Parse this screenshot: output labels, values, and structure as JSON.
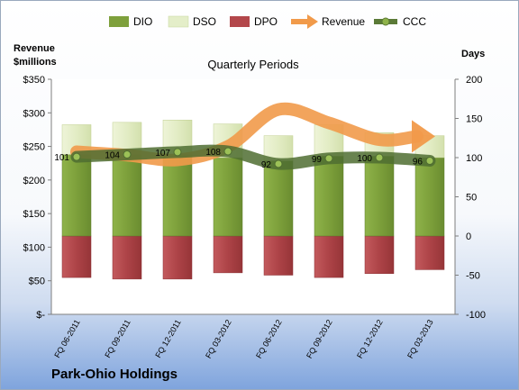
{
  "chart_data": {
    "type": "bar",
    "title": "Quarterly Periods",
    "company": "Park-Ohio Holdings",
    "y_left_label_line1": "Revenue",
    "y_left_label_line2": "$millions",
    "y_right_label": "Days",
    "y_left_ticks": [
      "$-",
      "$50",
      "$100",
      "$150",
      "$200",
      "$250",
      "$300",
      "$350"
    ],
    "y_right_ticks": [
      "-100",
      "-50",
      "0",
      "50",
      "100",
      "150",
      "200"
    ],
    "ylim_left": [
      0,
      350
    ],
    "ylim_right": [
      -100,
      200
    ],
    "categories": [
      "FQ 06-2011",
      "FQ 09-2011",
      "FQ 12-2011",
      "FQ 03-2012",
      "FQ 06-2012",
      "FQ 09-2012",
      "FQ 12-2012",
      "FQ 03-2013"
    ],
    "series": [
      {
        "name": "DIO",
        "axis": "right",
        "kind": "stacked-bar",
        "values": [
          104,
          104,
          104,
          100,
          96,
          102,
          102,
          100
        ],
        "color": "#7ea03c"
      },
      {
        "name": "DSO",
        "axis": "right",
        "kind": "stacked-bar",
        "values": [
          38,
          41,
          44,
          43,
          32,
          40,
          30,
          28
        ],
        "color": "#e4eec9"
      },
      {
        "name": "DPO",
        "axis": "right",
        "kind": "negative-bar",
        "values": [
          -53,
          -55,
          -55,
          -47,
          -50,
          -53,
          -48,
          -43
        ],
        "color": "#b3474b"
      },
      {
        "name": "Revenue",
        "axis": "left",
        "kind": "line",
        "values": [
          242,
          237,
          230,
          250,
          305,
          285,
          260,
          265
        ],
        "color": "#f19a4a"
      },
      {
        "name": "CCC",
        "axis": "right",
        "kind": "line",
        "values": [
          101,
          104,
          107,
          108,
          92,
          99,
          100,
          96
        ],
        "color": "#5b7a37"
      }
    ],
    "ccc_labels": [
      "101",
      "104",
      "107",
      "108",
      "92",
      "99",
      "100",
      "96"
    ],
    "legend_position": "top",
    "grid": false
  }
}
